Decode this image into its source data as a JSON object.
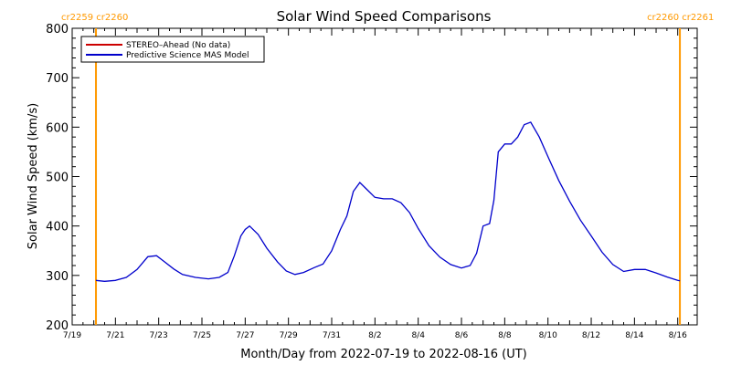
{
  "chart_data": {
    "type": "line",
    "title": "Solar Wind Speed Comparisons",
    "xlabel": "Month/Day from 2022-07-19 to 2022-08-16 (UT)",
    "ylabel": "Solar Wind Speed (km/s)",
    "xlim_day": [
      0,
      28.9
    ],
    "ylim": [
      200,
      800
    ],
    "y_ticks": [
      200,
      300,
      400,
      500,
      600,
      700,
      800
    ],
    "x_ticks": [
      {
        "day": 0,
        "label": "7/19"
      },
      {
        "day": 2,
        "label": "7/21"
      },
      {
        "day": 4,
        "label": "7/23"
      },
      {
        "day": 6,
        "label": "7/25"
      },
      {
        "day": 8,
        "label": "7/27"
      },
      {
        "day": 10,
        "label": "7/29"
      },
      {
        "day": 12,
        "label": "7/31"
      },
      {
        "day": 14,
        "label": "8/2"
      },
      {
        "day": 16,
        "label": "8/4"
      },
      {
        "day": 18,
        "label": "8/6"
      },
      {
        "day": 20,
        "label": "8/8"
      },
      {
        "day": 22,
        "label": "8/10"
      },
      {
        "day": 24,
        "label": "8/12"
      },
      {
        "day": 26,
        "label": "8/14"
      },
      {
        "day": 28,
        "label": "8/16"
      }
    ],
    "carrington_markers": [
      {
        "day": 1.1,
        "label": "cr2259 cr2260",
        "color": "#ff9900"
      },
      {
        "day": 28.1,
        "label": "cr2260 cr2261",
        "color": "#ff9900"
      }
    ],
    "legend_position": "top-left",
    "series": [
      {
        "name": "STEREO–Ahead (No data)",
        "color": "#cc0000",
        "x": [],
        "y": []
      },
      {
        "name": "Predictive Science MAS Model",
        "color": "#0000cc",
        "x": [
          1.1,
          1.5,
          2.0,
          2.5,
          3.0,
          3.5,
          3.9,
          4.2,
          4.7,
          5.1,
          5.7,
          6.3,
          6.8,
          7.2,
          7.5,
          7.8,
          8.0,
          8.2,
          8.6,
          9.0,
          9.5,
          9.9,
          10.3,
          10.7,
          11.2,
          11.6,
          12.0,
          12.4,
          12.7,
          13.0,
          13.3,
          13.6,
          14.0,
          14.4,
          14.8,
          15.2,
          15.6,
          16.0,
          16.5,
          17.0,
          17.5,
          18.0,
          18.4,
          18.7,
          19.0,
          19.3,
          19.5,
          19.7,
          20.0,
          20.3,
          20.6,
          20.9,
          21.2,
          21.6,
          22.0,
          22.5,
          23.0,
          23.5,
          24.0,
          24.5,
          25.0,
          25.5,
          26.0,
          26.5,
          27.0,
          27.5,
          28.0,
          28.1
        ],
        "y": [
          290,
          288,
          290,
          296,
          312,
          338,
          340,
          330,
          313,
          302,
          296,
          293,
          296,
          306,
          340,
          380,
          393,
          400,
          383,
          355,
          327,
          309,
          302,
          306,
          316,
          323,
          350,
          393,
          420,
          470,
          488,
          475,
          458,
          455,
          455,
          447,
          427,
          395,
          360,
          337,
          322,
          315,
          320,
          345,
          400,
          405,
          452,
          550,
          566,
          566,
          580,
          605,
          610,
          580,
          540,
          492,
          450,
          412,
          380,
          347,
          322,
          308,
          312,
          312,
          305,
          297,
          290,
          289
        ]
      }
    ]
  }
}
